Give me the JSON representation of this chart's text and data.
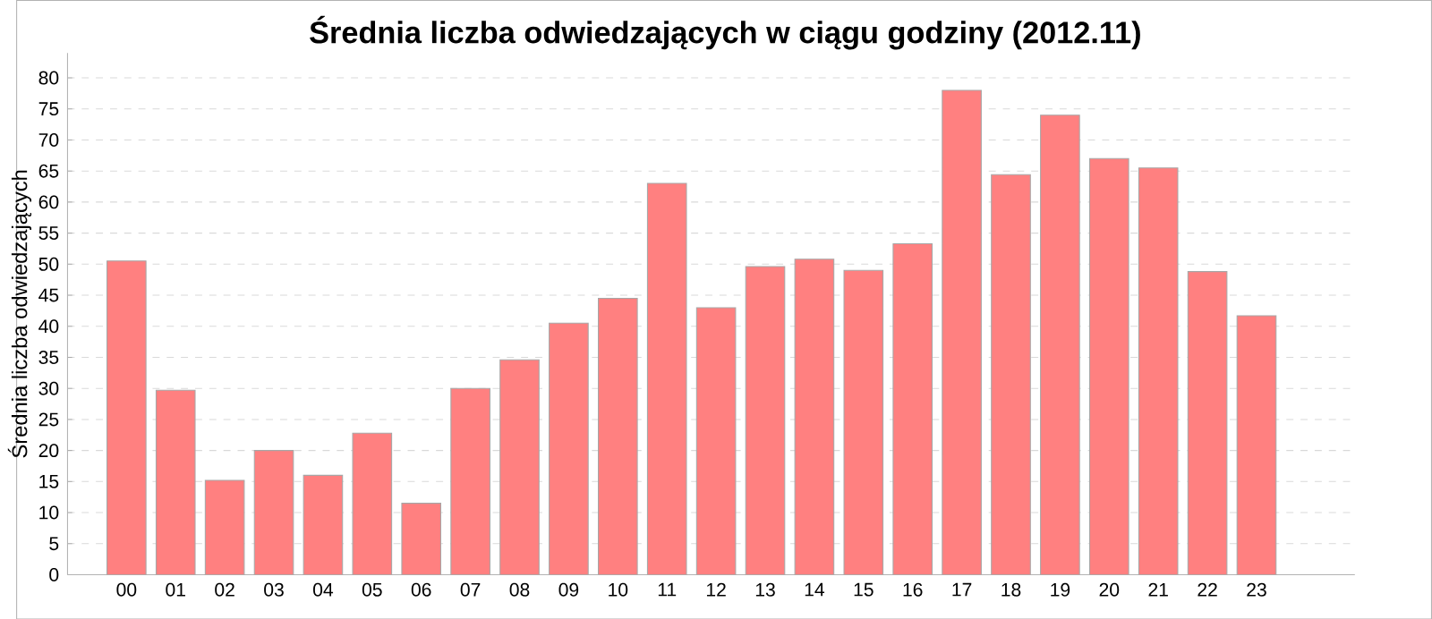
{
  "chart_data": {
    "type": "bar",
    "title": "Średnia liczba odwiedzających w ciągu godziny (2012.11)",
    "ylabel": "Średnia liczba odwiedzających",
    "categories": [
      "00",
      "01",
      "02",
      "03",
      "04",
      "05",
      "06",
      "07",
      "08",
      "09",
      "10",
      "11",
      "12",
      "13",
      "14",
      "15",
      "16",
      "17",
      "18",
      "19",
      "20",
      "21",
      "22",
      "23"
    ],
    "values": [
      50.5,
      29.7,
      15.2,
      20,
      16,
      22.8,
      11.5,
      30,
      34.6,
      40.5,
      44.5,
      63,
      43,
      49.6,
      50.8,
      49,
      53.3,
      78,
      64.4,
      74,
      67,
      65.5,
      48.8,
      41.7
    ],
    "color": "#ff8080",
    "ylim": [
      0,
      84
    ],
    "yticks": [
      0,
      5,
      10,
      15,
      20,
      25,
      30,
      35,
      40,
      45,
      50,
      55,
      60,
      65,
      70,
      75,
      80
    ],
    "grid": "y"
  }
}
